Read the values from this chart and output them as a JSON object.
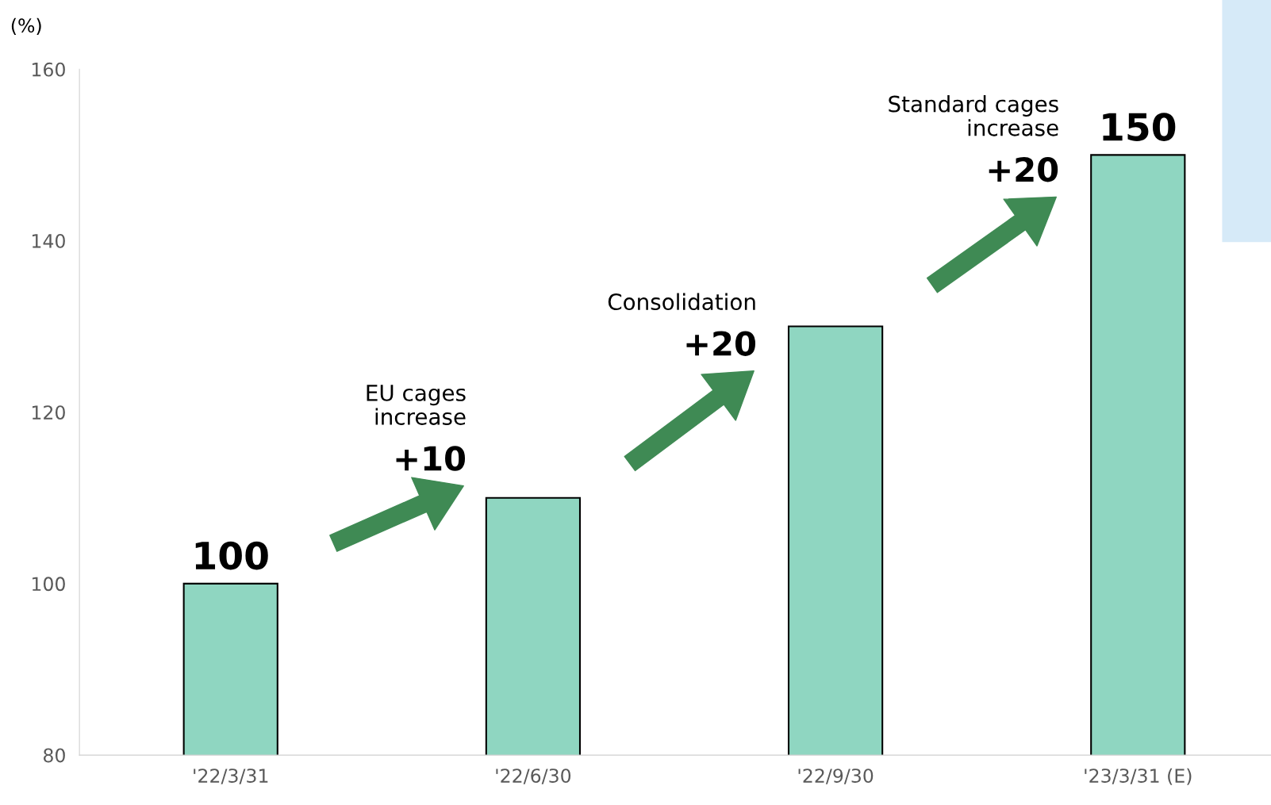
{
  "chart_data": {
    "type": "bar",
    "ylabel": "(%)",
    "categories": [
      "'22/3/31",
      "'22/6/30",
      "'22/9/30",
      "'23/3/31 (E)"
    ],
    "values": [
      100,
      110,
      130,
      150
    ],
    "color": "#8fd6c1",
    "value_labels": [
      "100",
      null,
      null,
      "150"
    ],
    "ylim": [
      80,
      160
    ],
    "yticks": [
      80,
      100,
      120,
      140,
      160
    ],
    "grid": false,
    "annotations": [
      "EU cages\nincrease",
      "+10",
      "Consolidation",
      "+20",
      "Standard cages\nincrease",
      "+20"
    ]
  }
}
